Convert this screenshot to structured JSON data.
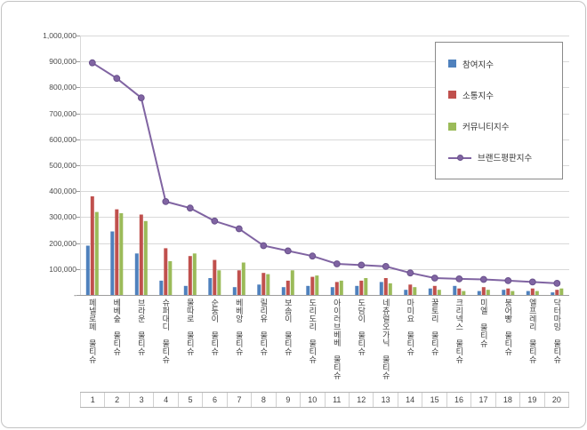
{
  "chart_data": {
    "type": "combo-bar-line",
    "title": "",
    "categories": [
      "페넬로페 물티슈",
      "베베숲 물티슈",
      "브라운 물티슈",
      "슈퍼대디 물티슈",
      "물따로 물티슈",
      "순둥이 물티슈",
      "베베앙 물티슈",
      "릴리유 물티슈",
      "보솜이 물티슈",
      "도리도리 물티슈",
      "아이러브베베 물티슈",
      "도담이 물티슈",
      "네츄럴오가닉 물티슈",
      "마미요 물티슈",
      "꿀토리 물티슈",
      "크리넥스 물티슈",
      "미엘 물티슈",
      "붕어빵 물티슈",
      "엘프레리 물티슈",
      "닥터마밍 물티슈"
    ],
    "rank_labels": [
      "1",
      "2",
      "3",
      "4",
      "5",
      "6",
      "7",
      "8",
      "9",
      "10",
      "11",
      "12",
      "13",
      "14",
      "15",
      "16",
      "17",
      "18",
      "19",
      "20"
    ],
    "series": [
      {
        "name": "참여지수",
        "type": "bar",
        "color": "#4F81BD",
        "values": [
          190000,
          245000,
          160000,
          55000,
          35000,
          65000,
          30000,
          40000,
          30000,
          35000,
          30000,
          35000,
          50000,
          20000,
          25000,
          35000,
          15000,
          20000,
          15000,
          10000
        ]
      },
      {
        "name": "소통지수",
        "type": "bar",
        "color": "#C0504D",
        "values": [
          380000,
          330000,
          310000,
          180000,
          150000,
          135000,
          95000,
          85000,
          55000,
          70000,
          50000,
          55000,
          65000,
          40000,
          35000,
          25000,
          30000,
          25000,
          25000,
          20000
        ]
      },
      {
        "name": "커뮤니티지수",
        "type": "bar",
        "color": "#9BBB59",
        "values": [
          320000,
          315000,
          285000,
          130000,
          160000,
          95000,
          125000,
          80000,
          95000,
          75000,
          55000,
          65000,
          45000,
          30000,
          20000,
          15000,
          20000,
          15000,
          15000,
          25000
        ]
      },
      {
        "name": "브랜드평판지수",
        "type": "line",
        "color": "#8064A2",
        "values": [
          895000,
          835000,
          760000,
          360000,
          335000,
          285000,
          255000,
          190000,
          170000,
          150000,
          120000,
          115000,
          110000,
          85000,
          65000,
          62000,
          60000,
          55000,
          50000,
          45000
        ]
      }
    ],
    "y_axis": {
      "min": 0,
      "max": 1000000,
      "step": 100000,
      "tick_labels": [
        "-",
        "100,000",
        "200,000",
        "300,000",
        "400,000",
        "500,000",
        "600,000",
        "700,000",
        "800,000",
        "900,000",
        "1,000,000"
      ]
    },
    "grid": true,
    "legend_position": "top-right"
  }
}
